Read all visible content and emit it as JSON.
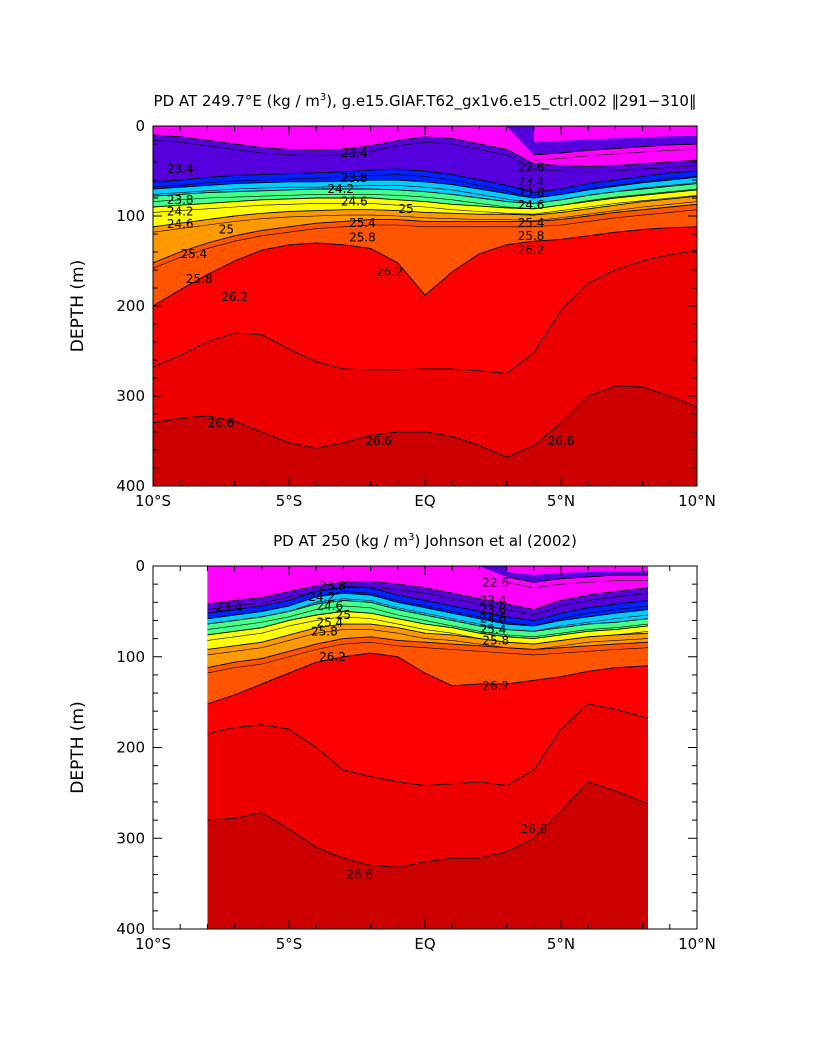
{
  "chart_data": [
    {
      "type": "contour",
      "title_prefix": "PD AT 249.7°E (kg / m",
      "title_sup": "3",
      "title_suffix": "), g.e15.GIAF.T62_gx1v6.e15_ctrl.002 ‖291−310‖",
      "xlabel": "",
      "ylabel": "DEPTH (m)",
      "xlim": [
        -10,
        10
      ],
      "ylim": [
        0,
        400
      ],
      "x_data_range": [
        -10,
        10
      ],
      "xtick_values": [
        -10,
        -5,
        0,
        5,
        10
      ],
      "xtick_labels": [
        "10°S",
        "5°S",
        "EQ",
        "5°N",
        "10°N"
      ],
      "ytick_values": [
        0,
        100,
        200,
        300,
        400
      ],
      "ytick_labels": [
        "0",
        "100",
        "200",
        "300",
        "400"
      ],
      "contour_interval": 0.2,
      "x": [
        -10,
        -9,
        -8,
        -7,
        -6,
        -5,
        -4,
        -3,
        -2,
        -1,
        0,
        1,
        2,
        3,
        4,
        5,
        6,
        7,
        8,
        9,
        10
      ],
      "contour_depths": {
        "22.6": [
          null,
          null,
          null,
          null,
          null,
          null,
          null,
          null,
          null,
          null,
          null,
          null,
          null,
          null,
          32,
          30,
          27,
          25,
          23,
          21,
          20
        ],
        "23.4": [
          10,
          12,
          16,
          20,
          24,
          26,
          27,
          26,
          22,
          16,
          12,
          14,
          20,
          26,
          42,
          44,
          45,
          44,
          42,
          40,
          38
        ],
        "23.8": [
          62,
          60,
          57,
          55,
          54,
          53,
          52,
          51,
          49,
          48,
          50,
          54,
          60,
          66,
          74,
          70,
          64,
          60,
          56,
          52,
          50
        ],
        "24.2": [
          70,
          68,
          66,
          64,
          63,
          62,
          62,
          61,
          60,
          60,
          62,
          65,
          70,
          75,
          80,
          76,
          71,
          67,
          63,
          60,
          57
        ],
        "24.6": [
          78,
          76,
          74,
          73,
          72,
          71,
          70,
          70,
          70,
          71,
          73,
          76,
          80,
          84,
          86,
          82,
          77,
          73,
          70,
          67,
          64
        ],
        "25.0": [
          90,
          88,
          86,
          84,
          82,
          81,
          80,
          80,
          80,
          82,
          84,
          87,
          89,
          91,
          92,
          88,
          84,
          80,
          77,
          74,
          71
        ],
        "25.4": [
          112,
          108,
          104,
          100,
          97,
          95,
          94,
          93,
          93,
          94,
          96,
          97,
          98,
          98,
          99,
          96,
          92,
          88,
          84,
          81,
          78
        ],
        "25.8": [
          152,
          140,
          130,
          122,
          116,
          112,
          108,
          106,
          104,
          104,
          106,
          106,
          106,
          106,
          106,
          104,
          100,
          96,
          93,
          90,
          87
        ],
        "26.2": [
          200,
          182,
          165,
          150,
          138,
          132,
          130,
          132,
          136,
          152,
          188,
          162,
          142,
          132,
          128,
          126,
          122,
          118,
          115,
          113,
          112
        ],
        "26.4": [
          268,
          255,
          240,
          230,
          232,
          248,
          262,
          270,
          271,
          271,
          270,
          270,
          272,
          275,
          252,
          205,
          175,
          160,
          150,
          143,
          138
        ],
        "26.6": [
          330,
          325,
          322,
          328,
          340,
          352,
          358,
          352,
          344,
          340,
          340,
          345,
          355,
          368,
          355,
          330,
          300,
          289,
          290,
          300,
          312
        ]
      },
      "contour_labels": [
        {
          "text": "23.4",
          "x": -9.0,
          "y": 48
        },
        {
          "text": "23.4",
          "x": -2.6,
          "y": 30
        },
        {
          "text": "23.8",
          "x": -9.0,
          "y": 82
        },
        {
          "text": "23.8",
          "x": -2.6,
          "y": 58
        },
        {
          "text": "24.2",
          "x": -9.0,
          "y": 95
        },
        {
          "text": "24.2",
          "x": -3.1,
          "y": 70
        },
        {
          "text": "24.6",
          "x": -9.0,
          "y": 109
        },
        {
          "text": "24.6",
          "x": -2.6,
          "y": 84
        },
        {
          "text": "25",
          "x": -7.3,
          "y": 115
        },
        {
          "text": "25",
          "x": -0.7,
          "y": 92
        },
        {
          "text": "25.4",
          "x": -8.5,
          "y": 142
        },
        {
          "text": "25.4",
          "x": -2.3,
          "y": 108
        },
        {
          "text": "25.8",
          "x": -8.3,
          "y": 170
        },
        {
          "text": "25.8",
          "x": -2.3,
          "y": 124
        },
        {
          "text": "26.2",
          "x": -7.0,
          "y": 190
        },
        {
          "text": "26.2",
          "x": -1.3,
          "y": 162
        },
        {
          "text": "26.2",
          "x": 3.9,
          "y": 138
        },
        {
          "text": "22.6",
          "x": 3.9,
          "y": 46
        },
        {
          "text": "23.4",
          "x": 3.9,
          "y": 62
        },
        {
          "text": "23.8",
          "x": 3.9,
          "y": 74
        },
        {
          "text": "24.6",
          "x": 3.9,
          "y": 88
        },
        {
          "text": "25.4",
          "x": 3.9,
          "y": 108
        },
        {
          "text": "25.8",
          "x": 3.9,
          "y": 122
        },
        {
          "text": "26.6",
          "x": -7.5,
          "y": 330
        },
        {
          "text": "26.6",
          "x": -1.7,
          "y": 350
        },
        {
          "text": "26.6",
          "x": 5.0,
          "y": 350
        }
      ]
    },
    {
      "type": "contour",
      "title_prefix": "PD AT 250 (kg / m",
      "title_sup": "3",
      "title_suffix": ") Johnson et al (2002)",
      "xlabel": "",
      "ylabel": "DEPTH (m)",
      "xlim": [
        -10,
        10
      ],
      "ylim": [
        0,
        400
      ],
      "x_data_range": [
        -8,
        8.2
      ],
      "xtick_values": [
        -10,
        -5,
        0,
        5,
        10
      ],
      "xtick_labels": [
        "10°S",
        "5°S",
        "EQ",
        "5°N",
        "10°N"
      ],
      "ytick_values": [
        0,
        100,
        200,
        300,
        400
      ],
      "ytick_labels": [
        "0",
        "100",
        "200",
        "300",
        "400"
      ],
      "contour_interval": 0.2,
      "x": [
        -8,
        -7,
        -6,
        -5,
        -4,
        -3,
        -2,
        -1,
        0,
        1,
        2,
        3,
        4,
        5,
        6,
        7,
        8.2
      ],
      "contour_depths": {
        "22.6": [
          null,
          null,
          null,
          null,
          null,
          null,
          null,
          null,
          null,
          null,
          null,
          12,
          18,
          14,
          12,
          10,
          10
        ],
        "23.4": [
          42,
          38,
          35,
          28,
          22,
          18,
          17,
          20,
          24,
          30,
          36,
          42,
          48,
          38,
          32,
          28,
          24
        ],
        "23.8": [
          52,
          48,
          44,
          38,
          28,
          22,
          24,
          32,
          38,
          44,
          50,
          56,
          60,
          52,
          46,
          42,
          38
        ],
        "24.2": [
          58,
          54,
          50,
          44,
          34,
          30,
          32,
          40,
          46,
          52,
          58,
          64,
          66,
          60,
          56,
          52,
          48
        ],
        "24.6": [
          64,
          60,
          56,
          50,
          42,
          38,
          40,
          48,
          54,
          60,
          66,
          70,
          72,
          68,
          64,
          62,
          58
        ],
        "25.0": [
          76,
          72,
          68,
          60,
          54,
          50,
          52,
          58,
          64,
          68,
          74,
          78,
          80,
          76,
          72,
          70,
          66
        ],
        "25.4": [
          92,
          88,
          84,
          76,
          68,
          64,
          64,
          68,
          74,
          76,
          80,
          84,
          86,
          82,
          78,
          76,
          74
        ],
        "25.8": [
          112,
          106,
          102,
          94,
          86,
          80,
          78,
          82,
          84,
          86,
          88,
          90,
          92,
          90,
          88,
          86,
          84
        ],
        "26.2": [
          152,
          142,
          130,
          118,
          106,
          100,
          96,
          100,
          118,
          132,
          130,
          130,
          126,
          122,
          116,
          112,
          110
        ],
        "26.4": [
          185,
          178,
          175,
          180,
          200,
          225,
          232,
          238,
          242,
          240,
          238,
          242,
          225,
          180,
          152,
          158,
          168
        ],
        "26.6": [
          280,
          278,
          272,
          290,
          310,
          322,
          330,
          332,
          326,
          322,
          322,
          315,
          300,
          270,
          238,
          248,
          262
        ]
      },
      "contour_labels": [
        {
          "text": "23.4",
          "x": -7.2,
          "y": 45
        },
        {
          "text": "23.8",
          "x": -3.4,
          "y": 22
        },
        {
          "text": "24.2",
          "x": -3.8,
          "y": 34
        },
        {
          "text": "24.6",
          "x": -3.5,
          "y": 44
        },
        {
          "text": "25",
          "x": -3.0,
          "y": 54
        },
        {
          "text": "25.4",
          "x": -3.5,
          "y": 62
        },
        {
          "text": "25.8",
          "x": -3.7,
          "y": 72
        },
        {
          "text": "26.2",
          "x": -3.4,
          "y": 100
        },
        {
          "text": "26.2",
          "x": 2.6,
          "y": 132
        },
        {
          "text": "22.6",
          "x": 2.6,
          "y": 18
        },
        {
          "text": "23.4",
          "x": 2.5,
          "y": 38
        },
        {
          "text": "23.8",
          "x": 2.5,
          "y": 48
        },
        {
          "text": "24.6",
          "x": 2.5,
          "y": 58
        },
        {
          "text": "25.4",
          "x": 2.5,
          "y": 70
        },
        {
          "text": "25.8",
          "x": 2.6,
          "y": 82
        },
        {
          "text": "26.6",
          "x": -2.4,
          "y": 340
        },
        {
          "text": "26.6",
          "x": 4.0,
          "y": 290
        }
      ]
    }
  ],
  "colors": {
    "levels": [
      22.6,
      23.0,
      23.4,
      23.8,
      24.0,
      24.2,
      24.4,
      24.6,
      24.8,
      25.0,
      25.2,
      25.4,
      25.6,
      25.8,
      26.0,
      26.2,
      26.4,
      26.6
    ],
    "fills": [
      "#ff00ff",
      "#b800e6",
      "#5500dd",
      "#0022ff",
      "#0088ff",
      "#00ccff",
      "#00ffff",
      "#44ff88",
      "#99ff00",
      "#ffff00",
      "#ffcc00",
      "#ff9900",
      "#ff7700",
      "#ff5500",
      "#ff2a00",
      "#ff0000",
      "#ee0000",
      "#cc0000"
    ],
    "missing": "#ffffff",
    "line": "#000000"
  }
}
